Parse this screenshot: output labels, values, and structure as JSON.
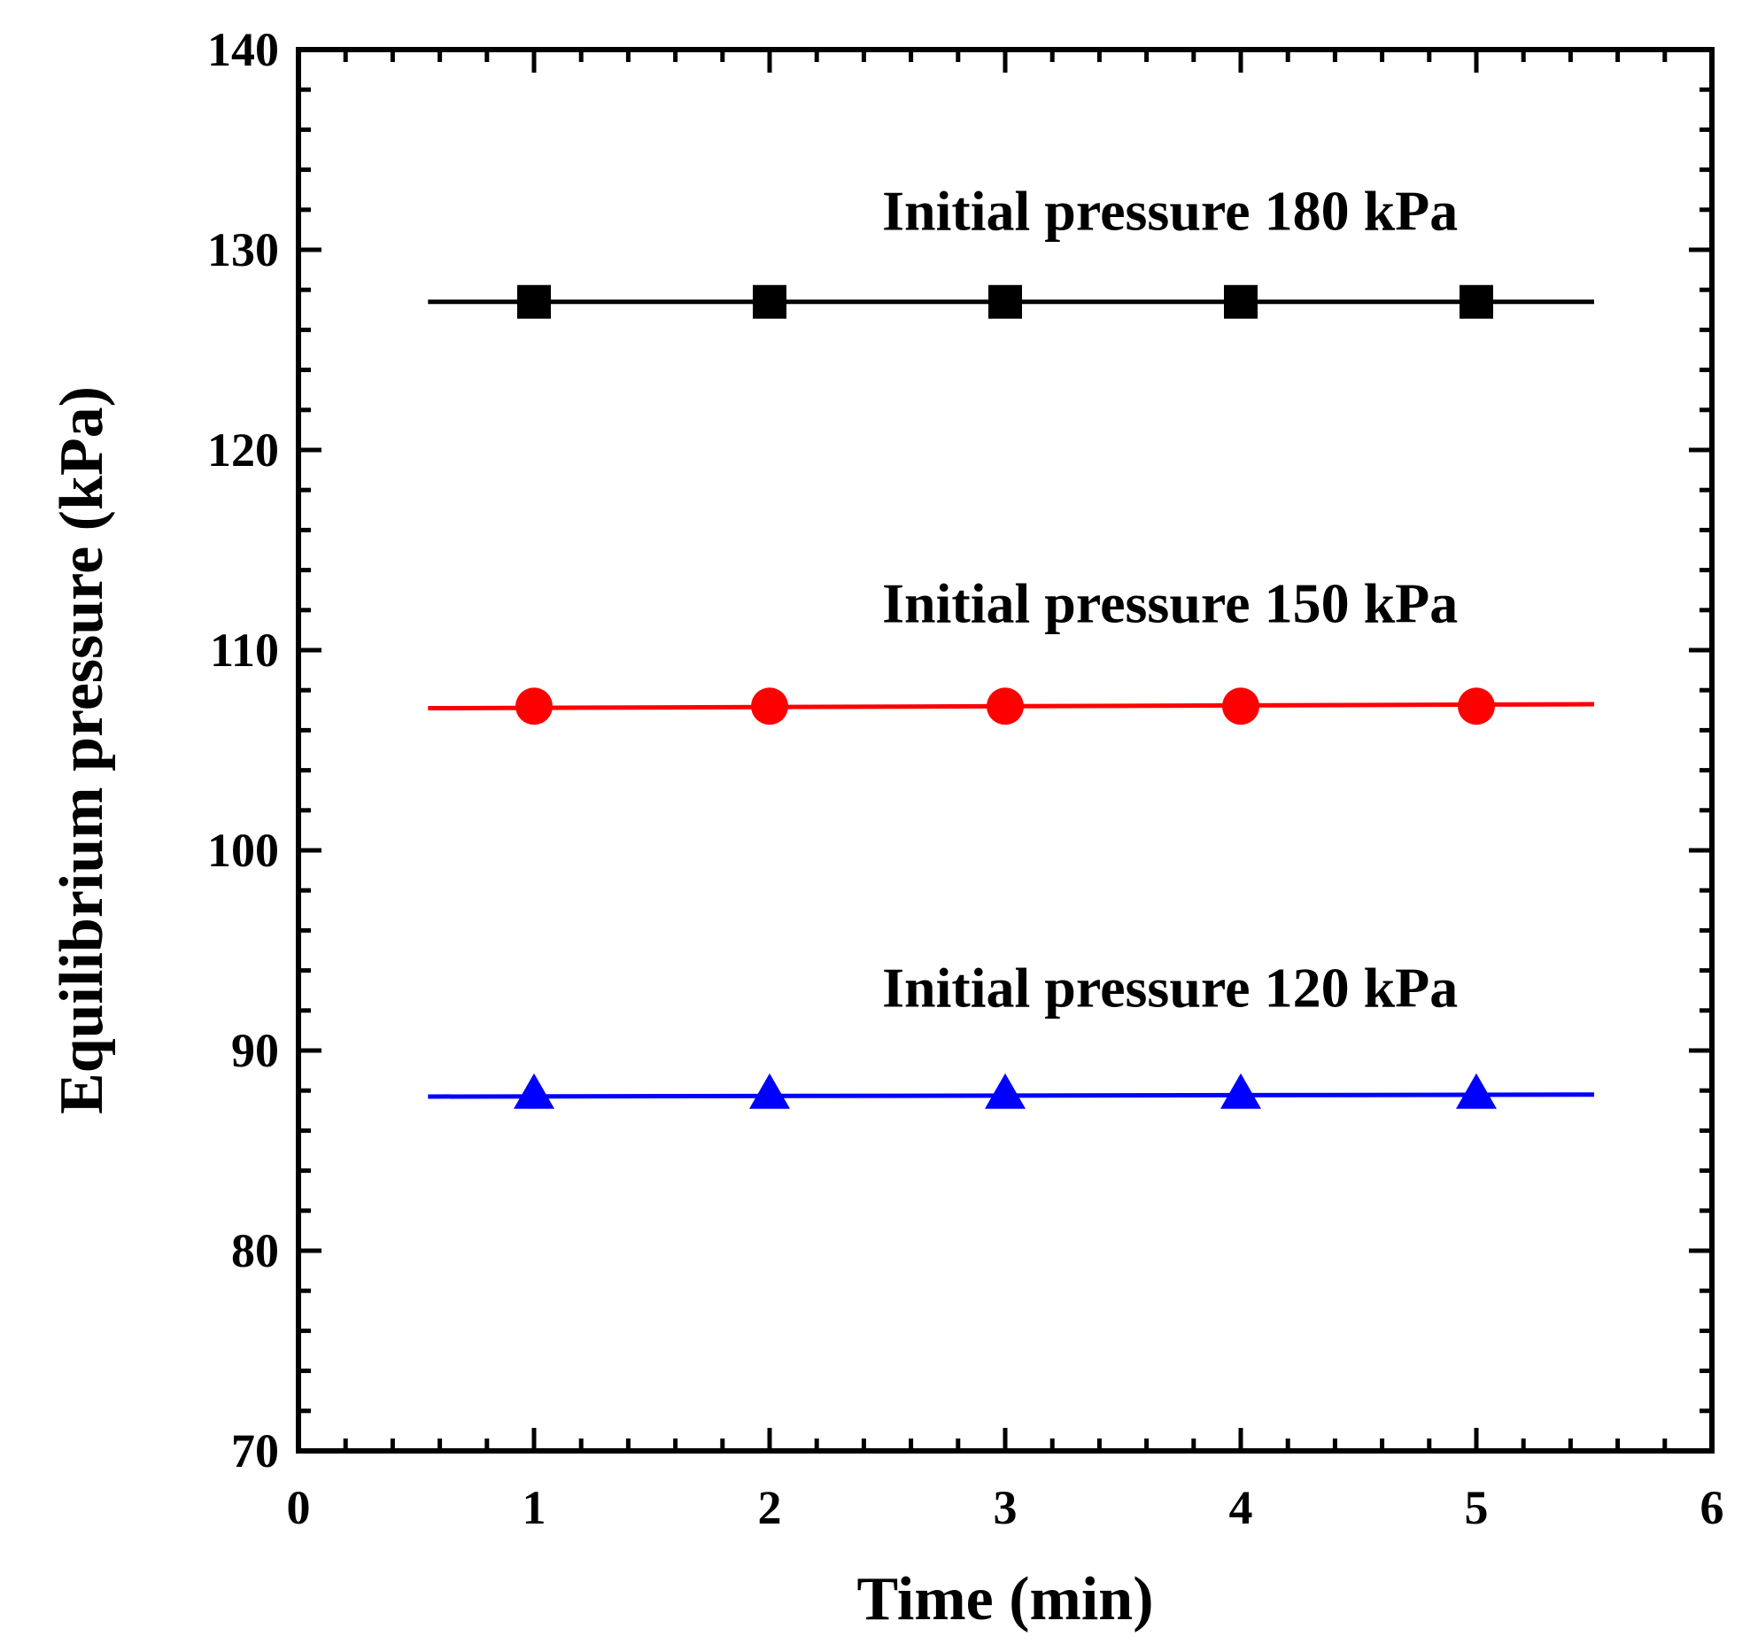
{
  "chart_data": {
    "type": "line",
    "title": "",
    "xlabel": "Time (min)",
    "ylabel": "Equilibrium pressure (kPa)",
    "xlim": [
      0,
      6
    ],
    "ylim": [
      70,
      140
    ],
    "xticks": [
      "0",
      "1",
      "2",
      "3",
      "4",
      "5",
      "6"
    ],
    "yticks": [
      "70",
      "80",
      "90",
      "100",
      "110",
      "120",
      "130",
      "140"
    ],
    "grid": false,
    "series": [
      {
        "name": "Initial pressure 180 kPa",
        "marker": "square",
        "color": "#000000",
        "x": [
          1,
          2,
          3,
          4,
          5
        ],
        "values": [
          127.4,
          127.4,
          127.4,
          127.4,
          127.4
        ],
        "fit_line": {
          "x": [
            0.55,
            5.5
          ],
          "y": [
            127.4,
            127.4
          ]
        }
      },
      {
        "name": "Initial pressure 150 kPa",
        "marker": "circle",
        "color": "#ff0000",
        "x": [
          1,
          2,
          3,
          4,
          5
        ],
        "values": [
          107.2,
          107.2,
          107.2,
          107.2,
          107.2
        ],
        "fit_line": {
          "x": [
            0.55,
            5.5
          ],
          "y": [
            107.1,
            107.3
          ]
        }
      },
      {
        "name": "Initial pressure 120 kPa",
        "marker": "triangle",
        "color": "#0000ff",
        "x": [
          1,
          2,
          3,
          4,
          5
        ],
        "values": [
          87.8,
          87.8,
          87.8,
          87.8,
          87.8
        ],
        "fit_line": {
          "x": [
            0.55,
            5.5
          ],
          "y": [
            87.7,
            87.8
          ]
        }
      }
    ],
    "annotations": [
      {
        "text": "Initial pressure 180 kPa",
        "x": 3.7,
        "y": 131
      },
      {
        "text": "Initial pressure 150 kPa",
        "x": 3.7,
        "y": 111.4
      },
      {
        "text": "Initial pressure 120 kPa",
        "x": 3.7,
        "y": 92.2
      }
    ]
  }
}
